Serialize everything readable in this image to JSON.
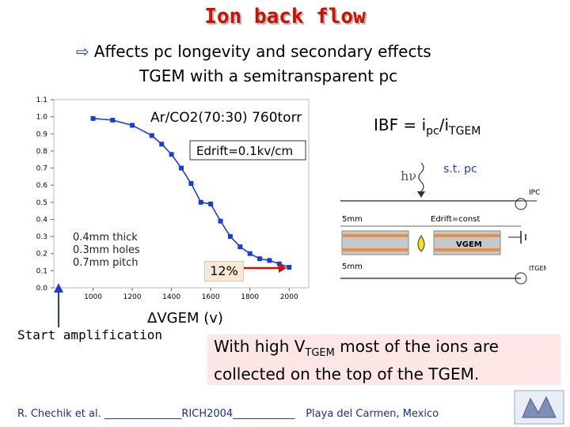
{
  "title": "Ion back flow",
  "subtitle_line1": "Affects pc longevity and  secondary effects",
  "subtitle_line2": "TGEM with a semitransparent pc",
  "ibf_formula": {
    "lhs": "IBF = i",
    "sub1": "pc",
    "mid": "/i",
    "sub2": "TGEM"
  },
  "chart_data": {
    "type": "line",
    "title": "Ar/CO2(70:30) 760torr",
    "field_label": "Edrift=0.1kv/cm",
    "ylabel": "",
    "xlabel": "ΔVGEM (v)",
    "xlim": [
      800,
      2100
    ],
    "ylim": [
      0.0,
      1.1
    ],
    "x_ticks": [
      "1000",
      "1200",
      "1400",
      "1600",
      "1800",
      "2000"
    ],
    "y_ticks": [
      "0.0",
      "0.1",
      "0.2",
      "0.3",
      "0.4",
      "0.5",
      "0.6",
      "0.7",
      "0.8",
      "0.9",
      "1.0",
      "1.1"
    ],
    "series": [
      {
        "x": [
          1000,
          1100,
          1200,
          1300,
          1350,
          1400,
          1450,
          1500,
          1550,
          1600,
          1650,
          1700,
          1750,
          1800,
          1850,
          1900,
          1950,
          2000
        ],
        "y": [
          0.99,
          0.98,
          0.95,
          0.89,
          0.84,
          0.78,
          0.7,
          0.61,
          0.5,
          0.49,
          0.39,
          0.3,
          0.24,
          0.2,
          0.17,
          0.16,
          0.14,
          0.12
        ]
      }
    ],
    "annotation_geometry": [
      "0.4mm thick",
      "0.3mm holes",
      "0.7mm pitch"
    ],
    "annotation_percent": "12%"
  },
  "diagram": {
    "hv_label": "hν",
    "st_pc_label": "s.t. pc",
    "gap_top": "5mm",
    "gap_bottom": "5mm",
    "edrift_label": "Edrift=const",
    "vgem_label": "VGEM",
    "ipc_label": "IPC",
    "itgem_label": "ITGEM"
  },
  "start_amplification": "Start amplification",
  "note_line1": {
    "pre": "With high V",
    "sub": "TGEM",
    "post": " most of the ions are"
  },
  "note_line2": "collected on the top of the TGEM.",
  "footer": {
    "authors": "R. Chechik et al. _______________",
    "conference": "RICH2004____________",
    "location": "Playa del Carmen, Mexico"
  },
  "colors": {
    "title": "#cc1100",
    "series": "#1a3fd0",
    "footer": "#1a2f8a",
    "note_bg": "#fde6e6"
  }
}
